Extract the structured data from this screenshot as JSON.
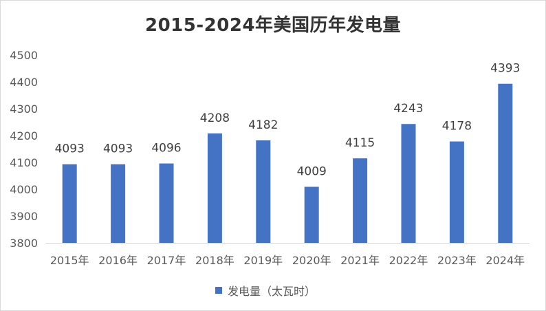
{
  "chart_data": {
    "type": "bar",
    "title": "2015-2024年美国历年发电量",
    "categories": [
      "2015年",
      "2016年",
      "2017年",
      "2018年",
      "2019年",
      "2020年",
      "2021年",
      "2022年",
      "2023年",
      "2024年"
    ],
    "series": [
      {
        "name": "发电量（太瓦时）",
        "values": [
          4093,
          4093,
          4096,
          4208,
          4182,
          4009,
          4115,
          4243,
          4178,
          4393
        ],
        "color": "#4472C4"
      }
    ],
    "y_ticks": [
      "3800",
      "3900",
      "4000",
      "4100",
      "4200",
      "4300",
      "4400",
      "4500"
    ],
    "ylim": [
      3800,
      4500
    ],
    "grid": false,
    "data_labels": true,
    "legend_position": "bottom"
  }
}
